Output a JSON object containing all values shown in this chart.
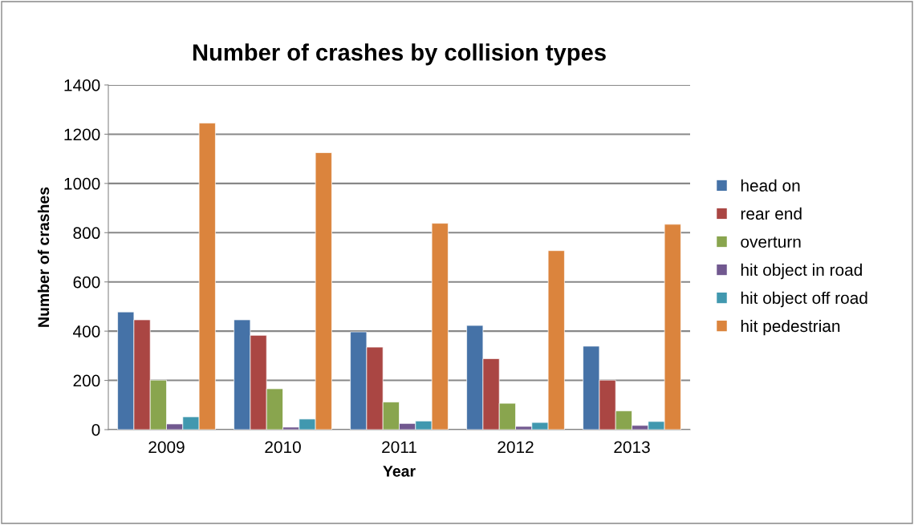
{
  "chart_data": {
    "type": "bar",
    "title": "Number of crashes by collision types",
    "xlabel": "Year",
    "ylabel": "Number of crashes",
    "categories": [
      "2009",
      "2010",
      "2011",
      "2012",
      "2013"
    ],
    "series": [
      {
        "name": "head on",
        "color": "#4572a7",
        "values": [
          478,
          446,
          397,
          423,
          339
        ]
      },
      {
        "name": "rear end",
        "color": "#aa4643",
        "values": [
          446,
          383,
          335,
          288,
          201
        ]
      },
      {
        "name": "overturn",
        "color": "#89a54e",
        "values": [
          201,
          166,
          112,
          107,
          76
        ]
      },
      {
        "name": "hit object in road",
        "color": "#71588f",
        "values": [
          23,
          10,
          25,
          13,
          17
        ]
      },
      {
        "name": "hit object off road",
        "color": "#4198af",
        "values": [
          52,
          43,
          35,
          29,
          33
        ]
      },
      {
        "name": "hit pedestrian",
        "color": "#db843d",
        "values": [
          1245,
          1125,
          838,
          727,
          834
        ]
      }
    ],
    "ylim": [
      0,
      1400
    ],
    "yticks": [
      0,
      200,
      400,
      600,
      800,
      1000,
      1200,
      1400
    ],
    "grid": "y",
    "legend": "right"
  }
}
